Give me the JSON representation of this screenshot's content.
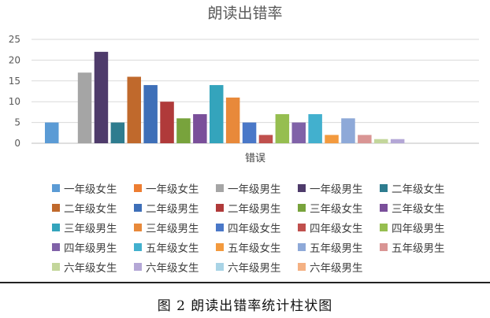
{
  "chart_data": {
    "type": "bar",
    "title": "朗读出错率",
    "xlabel": "错误",
    "ylabel": "",
    "ylim": [
      0,
      25
    ],
    "yticks": [
      0,
      5,
      10,
      15,
      20,
      25
    ],
    "grid": true,
    "legend_position": "bottom",
    "series": [
      {
        "name": "一年级女生",
        "value": 5,
        "color": "#5B9BD5"
      },
      {
        "name": "一年级女生",
        "value": 0,
        "color": "#ED7D31"
      },
      {
        "name": "一年级男生",
        "value": 17,
        "color": "#A5A5A5"
      },
      {
        "name": "一年级男生",
        "value": 22,
        "color": "#4E3B6B"
      },
      {
        "name": "二年级女生",
        "value": 5,
        "color": "#2E7C8F"
      },
      {
        "name": "二年级女生",
        "value": 16,
        "color": "#C0692C"
      },
      {
        "name": "二年级男生",
        "value": 14,
        "color": "#3E6FB8"
      },
      {
        "name": "二年级男生",
        "value": 10,
        "color": "#B03A3A"
      },
      {
        "name": "三年级女生",
        "value": 6,
        "color": "#78A33C"
      },
      {
        "name": "三年级女生",
        "value": 7,
        "color": "#7A4F9A"
      },
      {
        "name": "三年级男生",
        "value": 14,
        "color": "#34A4BC"
      },
      {
        "name": "三年级男生",
        "value": 11,
        "color": "#E8893A"
      },
      {
        "name": "四年级女生",
        "value": 5,
        "color": "#4A78C8"
      },
      {
        "name": "四年级女生",
        "value": 2,
        "color": "#C0504D"
      },
      {
        "name": "四年级男生",
        "value": 7,
        "color": "#96BE50"
      },
      {
        "name": "四年级男生",
        "value": 5,
        "color": "#8062A8"
      },
      {
        "name": "五年级女生",
        "value": 7,
        "color": "#42B0CE"
      },
      {
        "name": "五年级女生",
        "value": 2,
        "color": "#F39A3E"
      },
      {
        "name": "五年级男生",
        "value": 6,
        "color": "#8EA9D8"
      },
      {
        "name": "五年级男生",
        "value": 2,
        "color": "#D99594"
      },
      {
        "name": "六年级女生",
        "value": 1,
        "color": "#C3D69B"
      },
      {
        "name": "六年级女生",
        "value": 1,
        "color": "#B4A7D6"
      },
      {
        "name": "六年级男生",
        "value": 0,
        "color": "#A9D4E6"
      },
      {
        "name": "六年级男生",
        "value": 0,
        "color": "#F4B183"
      }
    ]
  },
  "caption": "图 2   朗读出错率统计柱状图"
}
